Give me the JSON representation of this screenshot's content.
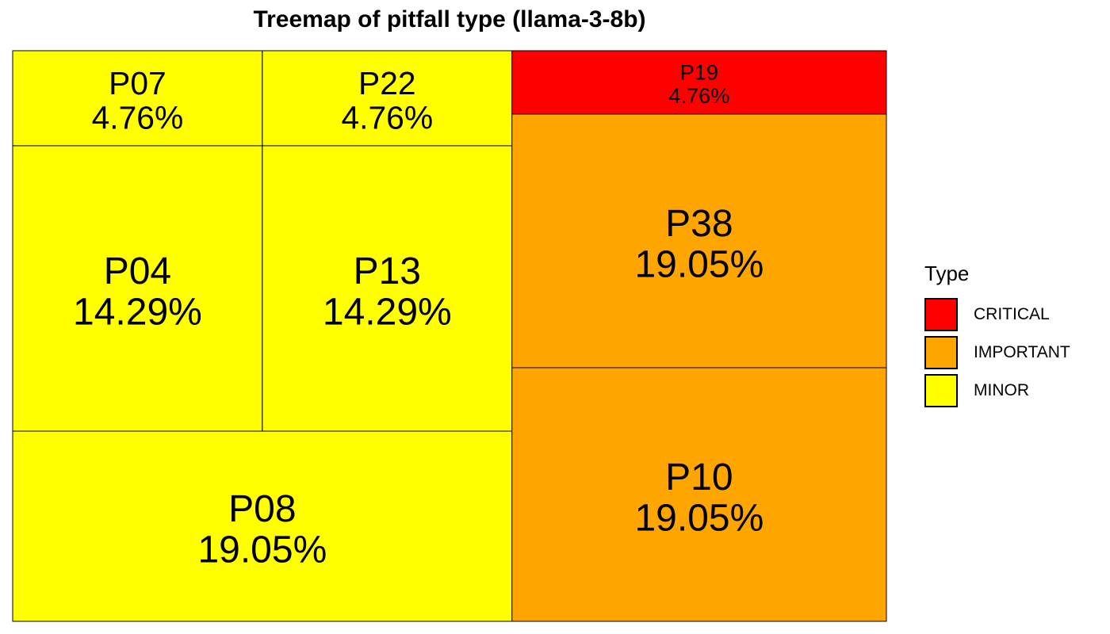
{
  "chart_data": {
    "type": "treemap",
    "title": "Treemap of pitfall type (llama-3-8b)",
    "legend_title": "Type",
    "legend_position": "right",
    "types": [
      {
        "name": "CRITICAL",
        "color": "#ff0000"
      },
      {
        "name": "IMPORTANT",
        "color": "#ffa500"
      },
      {
        "name": "MINOR",
        "color": "#ffff00"
      }
    ],
    "tiles": [
      {
        "label": "P07",
        "value": 4.76,
        "value_label": "4.76%",
        "type": "MINOR"
      },
      {
        "label": "P22",
        "value": 4.76,
        "value_label": "4.76%",
        "type": "MINOR"
      },
      {
        "label": "P04",
        "value": 14.29,
        "value_label": "14.29%",
        "type": "MINOR"
      },
      {
        "label": "P13",
        "value": 14.29,
        "value_label": "14.29%",
        "type": "MINOR"
      },
      {
        "label": "P08",
        "value": 19.05,
        "value_label": "19.05%",
        "type": "MINOR"
      },
      {
        "label": "P19",
        "value": 4.76,
        "value_label": "4.76%",
        "type": "CRITICAL"
      },
      {
        "label": "P38",
        "value": 19.05,
        "value_label": "19.05%",
        "type": "IMPORTANT"
      },
      {
        "label": "P10",
        "value": 19.05,
        "value_label": "19.05%",
        "type": "IMPORTANT"
      }
    ]
  }
}
